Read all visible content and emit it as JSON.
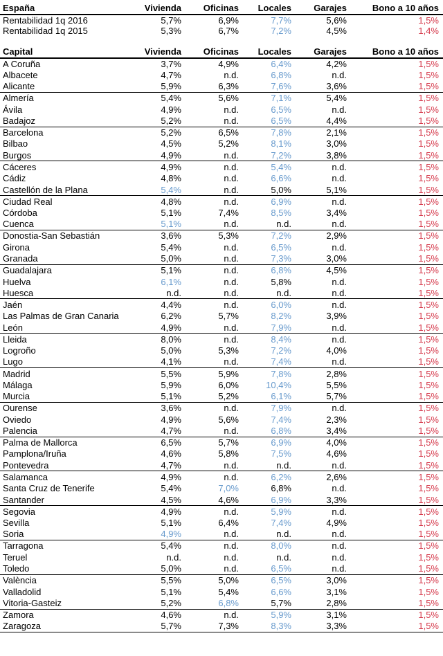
{
  "columns": [
    "Vivienda",
    "Oficinas",
    "Locales",
    "Garajes",
    "Bono a 10 años"
  ],
  "colors": {
    "highlight_blue": "#6699CC",
    "bono_red": "#D5394B",
    "text": "#000000"
  },
  "espana": {
    "title": "España",
    "rows": [
      {
        "name": "Rentabilidad 1q 2016",
        "values": [
          "5,7%",
          "6,9%",
          "7,7%",
          "5,6%"
        ],
        "bono": "1,5%",
        "blue": 2
      },
      {
        "name": "Rentabilidad 1q 2015",
        "values": [
          "5,3%",
          "6,7%",
          "7,2%",
          "4,5%"
        ],
        "bono": "1,4%",
        "blue": 2
      }
    ]
  },
  "capital": {
    "title": "Capital",
    "rows": [
      {
        "name": "A Coruña",
        "values": [
          "3,7%",
          "4,9%",
          "6,4%",
          "4,2%"
        ],
        "bono": "1,5%",
        "blue": 2
      },
      {
        "name": "Albacete",
        "values": [
          "4,7%",
          "n.d.",
          "6,8%",
          "n.d."
        ],
        "bono": "1,5%",
        "blue": 2
      },
      {
        "name": "Alicante",
        "values": [
          "5,9%",
          "6,3%",
          "7,6%",
          "3,6%"
        ],
        "bono": "1,5%",
        "blue": 2
      },
      {
        "name": "Almería",
        "values": [
          "5,4%",
          "5,6%",
          "7,1%",
          "5,4%"
        ],
        "bono": "1,5%",
        "blue": 2
      },
      {
        "name": "Ávila",
        "values": [
          "4,9%",
          "n.d.",
          "6,5%",
          "n.d."
        ],
        "bono": "1,5%",
        "blue": 2
      },
      {
        "name": "Badajoz",
        "values": [
          "5,2%",
          "n.d.",
          "6,5%",
          "4,4%"
        ],
        "bono": "1,5%",
        "blue": 2
      },
      {
        "name": "Barcelona",
        "values": [
          "5,2%",
          "6,5%",
          "7,8%",
          "2,1%"
        ],
        "bono": "1,5%",
        "blue": 2
      },
      {
        "name": "Bilbao",
        "values": [
          "4,5%",
          "5,2%",
          "8,1%",
          "3,0%"
        ],
        "bono": "1,5%",
        "blue": 2
      },
      {
        "name": "Burgos",
        "values": [
          "4,9%",
          "n.d.",
          "7,2%",
          "3,8%"
        ],
        "bono": "1,5%",
        "blue": 2
      },
      {
        "name": "Cáceres",
        "values": [
          "4,9%",
          "n.d.",
          "5,4%",
          "n.d."
        ],
        "bono": "1,5%",
        "blue": 2
      },
      {
        "name": "Cádiz",
        "values": [
          "4,8%",
          "n.d.",
          "6,6%",
          "n.d."
        ],
        "bono": "1,5%",
        "blue": 2
      },
      {
        "name": "Castellón de la Plana",
        "values": [
          "5,4%",
          "n.d.",
          "5,0%",
          "5,1%"
        ],
        "bono": "1,5%",
        "blue": 0
      },
      {
        "name": "Ciudad Real",
        "values": [
          "4,8%",
          "n.d.",
          "6,9%",
          "n.d."
        ],
        "bono": "1,5%",
        "blue": 2
      },
      {
        "name": "Córdoba",
        "values": [
          "5,1%",
          "7,4%",
          "8,5%",
          "3,4%"
        ],
        "bono": "1,5%",
        "blue": 2
      },
      {
        "name": "Cuenca",
        "values": [
          "5,1%",
          "n.d.",
          "n.d.",
          "n.d."
        ],
        "bono": "1,5%",
        "blue": 0
      },
      {
        "name": "Donostia-San Sebastián",
        "values": [
          "3,6%",
          "5,3%",
          "7,2%",
          "2,9%"
        ],
        "bono": "1,5%",
        "blue": 2
      },
      {
        "name": "Girona",
        "values": [
          "5,4%",
          "n.d.",
          "6,5%",
          "n.d."
        ],
        "bono": "1,5%",
        "blue": 2
      },
      {
        "name": "Granada",
        "values": [
          "5,0%",
          "n.d.",
          "7,3%",
          "3,0%"
        ],
        "bono": "1,5%",
        "blue": 2
      },
      {
        "name": "Guadalajara",
        "values": [
          "5,1%",
          "n.d.",
          "6,8%",
          "4,5%"
        ],
        "bono": "1,5%",
        "blue": 2
      },
      {
        "name": "Huelva",
        "values": [
          "6,1%",
          "n.d.",
          "5,8%",
          "n.d."
        ],
        "bono": "1,5%",
        "blue": 0
      },
      {
        "name": "Huesca",
        "values": [
          "n.d.",
          "n.d.",
          "n.d.",
          "n.d."
        ],
        "bono": "1,5%",
        "blue": null
      },
      {
        "name": "Jaén",
        "values": [
          "4,4%",
          "n.d.",
          "6,0%",
          "n.d."
        ],
        "bono": "1,5%",
        "blue": 2
      },
      {
        "name": "Las Palmas de Gran Canaria",
        "values": [
          "6,2%",
          "5,7%",
          "8,2%",
          "3,9%"
        ],
        "bono": "1,5%",
        "blue": 2
      },
      {
        "name": "León",
        "values": [
          "4,9%",
          "n.d.",
          "7,9%",
          "n.d."
        ],
        "bono": "1,5%",
        "blue": 2
      },
      {
        "name": "Lleida",
        "values": [
          "8,0%",
          "n.d.",
          "8,4%",
          "n.d."
        ],
        "bono": "1,5%",
        "blue": 2
      },
      {
        "name": "Logroño",
        "values": [
          "5,0%",
          "5,3%",
          "7,2%",
          "4,0%"
        ],
        "bono": "1,5%",
        "blue": 2
      },
      {
        "name": "Lugo",
        "values": [
          "4,1%",
          "n.d.",
          "7,4%",
          "n.d."
        ],
        "bono": "1,5%",
        "blue": 2
      },
      {
        "name": "Madrid",
        "values": [
          "5,5%",
          "5,9%",
          "7,8%",
          "2,8%"
        ],
        "bono": "1,5%",
        "blue": 2
      },
      {
        "name": "Málaga",
        "values": [
          "5,9%",
          "6,0%",
          "10,4%",
          "5,5%"
        ],
        "bono": "1,5%",
        "blue": 2
      },
      {
        "name": "Murcia",
        "values": [
          "5,1%",
          "5,2%",
          "6,1%",
          "5,7%"
        ],
        "bono": "1,5%",
        "blue": 2
      },
      {
        "name": "Ourense",
        "values": [
          "3,6%",
          "n.d.",
          "7,9%",
          "n.d."
        ],
        "bono": "1,5%",
        "blue": 2
      },
      {
        "name": "Oviedo",
        "values": [
          "4,9%",
          "5,6%",
          "7,4%",
          "2,3%"
        ],
        "bono": "1,5%",
        "blue": 2
      },
      {
        "name": "Palencia",
        "values": [
          "4,7%",
          "n.d.",
          "6,8%",
          "3,4%"
        ],
        "bono": "1,5%",
        "blue": 2
      },
      {
        "name": "Palma de Mallorca",
        "values": [
          "6,5%",
          "5,7%",
          "6,9%",
          "4,0%"
        ],
        "bono": "1,5%",
        "blue": 2
      },
      {
        "name": "Pamplona/Iruña",
        "values": [
          "4,6%",
          "5,8%",
          "7,5%",
          "4,6%"
        ],
        "bono": "1,5%",
        "blue": 2
      },
      {
        "name": "Pontevedra",
        "values": [
          "4,7%",
          "n.d.",
          "n.d.",
          "n.d."
        ],
        "bono": "1,5%",
        "blue": null
      },
      {
        "name": "Salamanca",
        "values": [
          "4,9%",
          "n.d.",
          "6,2%",
          "2,6%"
        ],
        "bono": "1,5%",
        "blue": 2
      },
      {
        "name": "Santa Cruz de Tenerife",
        "values": [
          "5,4%",
          "7,0%",
          "6,8%",
          "n.d."
        ],
        "bono": "1,5%",
        "blue": 1
      },
      {
        "name": "Santander",
        "values": [
          "4,5%",
          "4,6%",
          "6,9%",
          "3,3%"
        ],
        "bono": "1,5%",
        "blue": 2
      },
      {
        "name": "Segovia",
        "values": [
          "4,9%",
          "n.d.",
          "5,9%",
          "n.d."
        ],
        "bono": "1,5%",
        "blue": 2
      },
      {
        "name": "Sevilla",
        "values": [
          "5,1%",
          "6,4%",
          "7,4%",
          "4,9%"
        ],
        "bono": "1,5%",
        "blue": 2
      },
      {
        "name": "Soria",
        "values": [
          "4,9%",
          "n.d.",
          "n.d.",
          "n.d."
        ],
        "bono": "1,5%",
        "blue": 0
      },
      {
        "name": "Tarragona",
        "values": [
          "5,4%",
          "n.d.",
          "8,0%",
          "n.d."
        ],
        "bono": "1,5%",
        "blue": 2
      },
      {
        "name": "Teruel",
        "values": [
          "n.d.",
          "n.d.",
          "n.d.",
          "n.d."
        ],
        "bono": "1,5%",
        "blue": null
      },
      {
        "name": "Toledo",
        "values": [
          "5,0%",
          "n.d.",
          "6,5%",
          "n.d."
        ],
        "bono": "1,5%",
        "blue": 2
      },
      {
        "name": "València",
        "values": [
          "5,5%",
          "5,0%",
          "6,5%",
          "3,0%"
        ],
        "bono": "1,5%",
        "blue": 2
      },
      {
        "name": "Valladolid",
        "values": [
          "5,1%",
          "5,4%",
          "6,6%",
          "3,1%"
        ],
        "bono": "1,5%",
        "blue": 2
      },
      {
        "name": "Vitoria-Gasteiz",
        "values": [
          "5,2%",
          "6,8%",
          "5,7%",
          "2,8%"
        ],
        "bono": "1,5%",
        "blue": 1
      },
      {
        "name": "Zamora",
        "values": [
          "4,6%",
          "n.d.",
          "5,9%",
          "3,1%"
        ],
        "bono": "1,5%",
        "blue": 2
      },
      {
        "name": "Zaragoza",
        "values": [
          "5,7%",
          "7,3%",
          "8,3%",
          "3,3%"
        ],
        "bono": "1,5%",
        "blue": 2
      }
    ]
  }
}
